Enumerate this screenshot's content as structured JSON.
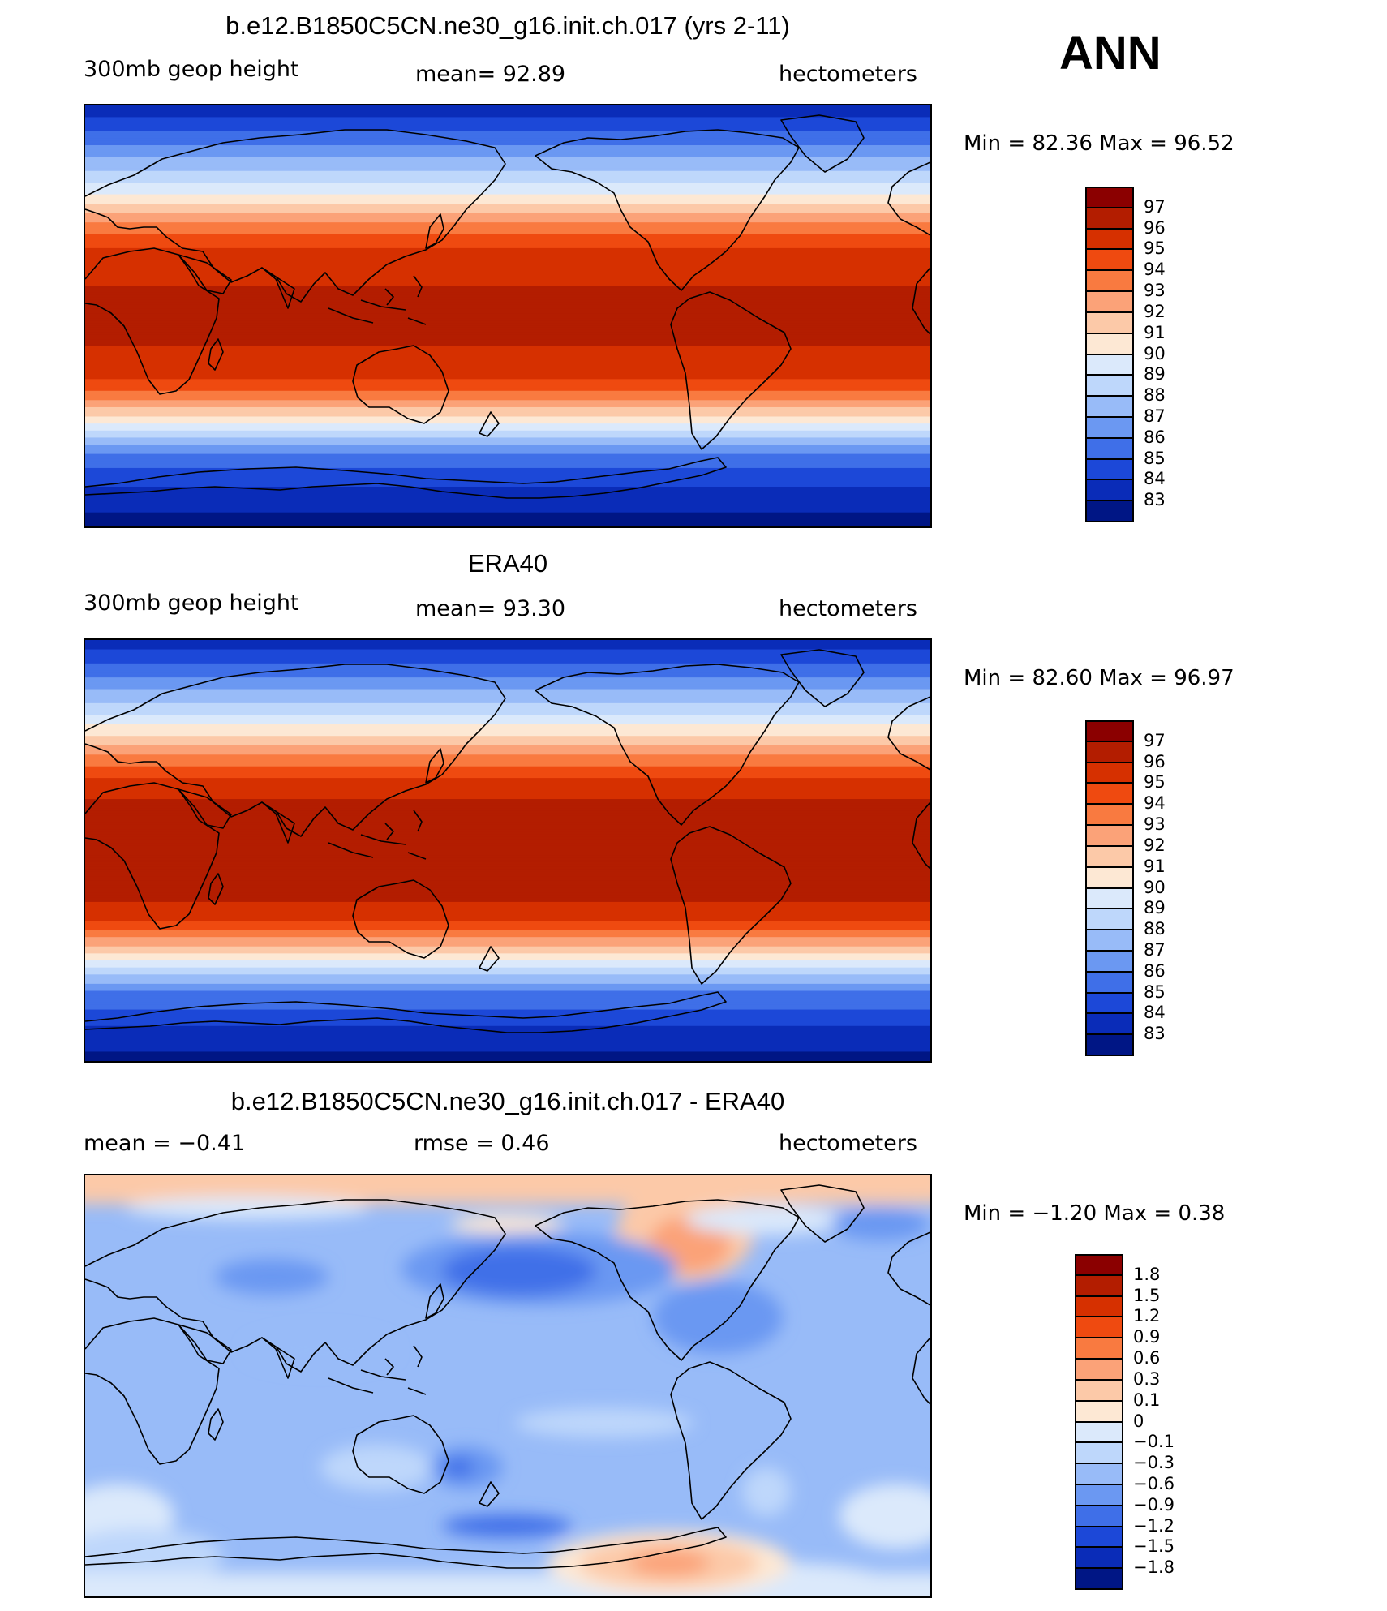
{
  "header": {
    "season": "ANN"
  },
  "panels": [
    {
      "title": "b.e12.B1850C5CN.ne30_g16.init.ch.017 (yrs 2-11)",
      "left_label": "300mb geop height",
      "center_label": "mean=  92.89",
      "right_label": "hectometers",
      "stats": "Min =   82.36 Max =   96.52",
      "colorbar_labels": [
        "97",
        "96",
        "95",
        "94",
        "93",
        "92",
        "91",
        "90",
        "89",
        "88",
        "87",
        "86",
        "85",
        "84",
        "83"
      ],
      "colorbar_colors": [
        "#8b0000",
        "#b31d00",
        "#d63000",
        "#ef4a10",
        "#f97a40",
        "#fba278",
        "#fcc9a8",
        "#fde8d4",
        "#dbe9fb",
        "#bed7fb",
        "#98bbf8",
        "#6b98f2",
        "#3f6fe8",
        "#1c48d8",
        "#0a2cb8",
        "#001685"
      ],
      "map_profile": [
        {
          "lat": 90,
          "v": 83.2
        },
        {
          "lat": 75,
          "v": 85.6
        },
        {
          "lat": 60,
          "v": 88.4
        },
        {
          "lat": 50,
          "v": 90.5
        },
        {
          "lat": 40,
          "v": 92.9
        },
        {
          "lat": 30,
          "v": 94.9
        },
        {
          "lat": 20,
          "v": 95.8
        },
        {
          "lat": 0,
          "v": 96.4
        },
        {
          "lat": -20,
          "v": 95.8
        },
        {
          "lat": -30,
          "v": 94.6
        },
        {
          "lat": -40,
          "v": 91.8
        },
        {
          "lat": -50,
          "v": 88.6
        },
        {
          "lat": -60,
          "v": 85.6
        },
        {
          "lat": -75,
          "v": 83.8
        },
        {
          "lat": -90,
          "v": 82.4
        }
      ]
    },
    {
      "title": "ERA40",
      "left_label": "300mb geop height",
      "center_label": "mean=  93.30",
      "right_label": "hectometers",
      "stats": "Min =   82.60 Max =   96.97",
      "colorbar_labels": [
        "97",
        "96",
        "95",
        "94",
        "93",
        "92",
        "91",
        "90",
        "89",
        "88",
        "87",
        "86",
        "85",
        "84",
        "83"
      ],
      "colorbar_colors": [
        "#8b0000",
        "#b31d00",
        "#d63000",
        "#ef4a10",
        "#f97a40",
        "#fba278",
        "#fcc9a8",
        "#fde8d4",
        "#dbe9fb",
        "#bed7fb",
        "#98bbf8",
        "#6b98f2",
        "#3f6fe8",
        "#1c48d8",
        "#0a2cb8",
        "#001685"
      ],
      "map_profile": [
        {
          "lat": 90,
          "v": 83.4
        },
        {
          "lat": 75,
          "v": 85.8
        },
        {
          "lat": 60,
          "v": 88.6
        },
        {
          "lat": 50,
          "v": 90.8
        },
        {
          "lat": 40,
          "v": 93.2
        },
        {
          "lat": 30,
          "v": 95.2
        },
        {
          "lat": 20,
          "v": 96.2
        },
        {
          "lat": 0,
          "v": 96.8
        },
        {
          "lat": -20,
          "v": 96.2
        },
        {
          "lat": -30,
          "v": 95.0
        },
        {
          "lat": -40,
          "v": 92.2
        },
        {
          "lat": -50,
          "v": 89.0
        },
        {
          "lat": -60,
          "v": 86.0
        },
        {
          "lat": -75,
          "v": 84.0
        },
        {
          "lat": -90,
          "v": 82.6
        }
      ]
    },
    {
      "title": "b.e12.B1850C5CN.ne30_g16.init.ch.017 - ERA40",
      "left_label": "mean =   −0.41",
      "center_label": "rmse =    0.46",
      "right_label": "hectometers",
      "stats": "Min =  −1.20 Max =    0.38",
      "colorbar_labels": [
        "1.8",
        "1.5",
        "1.2",
        "0.9",
        "0.6",
        "0.3",
        "0.1",
        "0",
        "−0.1",
        "−0.3",
        "−0.6",
        "−0.9",
        "−1.2",
        "−1.5",
        "−1.8"
      ],
      "colorbar_colors": [
        "#8b0000",
        "#b31d00",
        "#d63000",
        "#ef4a10",
        "#f97a40",
        "#fba278",
        "#fcc9a8",
        "#fde8d4",
        "#dbe9fb",
        "#bed7fb",
        "#98bbf8",
        "#6b98f2",
        "#3f6fe8",
        "#1c48d8",
        "#0a2cb8",
        "#001685"
      ]
    }
  ]
}
